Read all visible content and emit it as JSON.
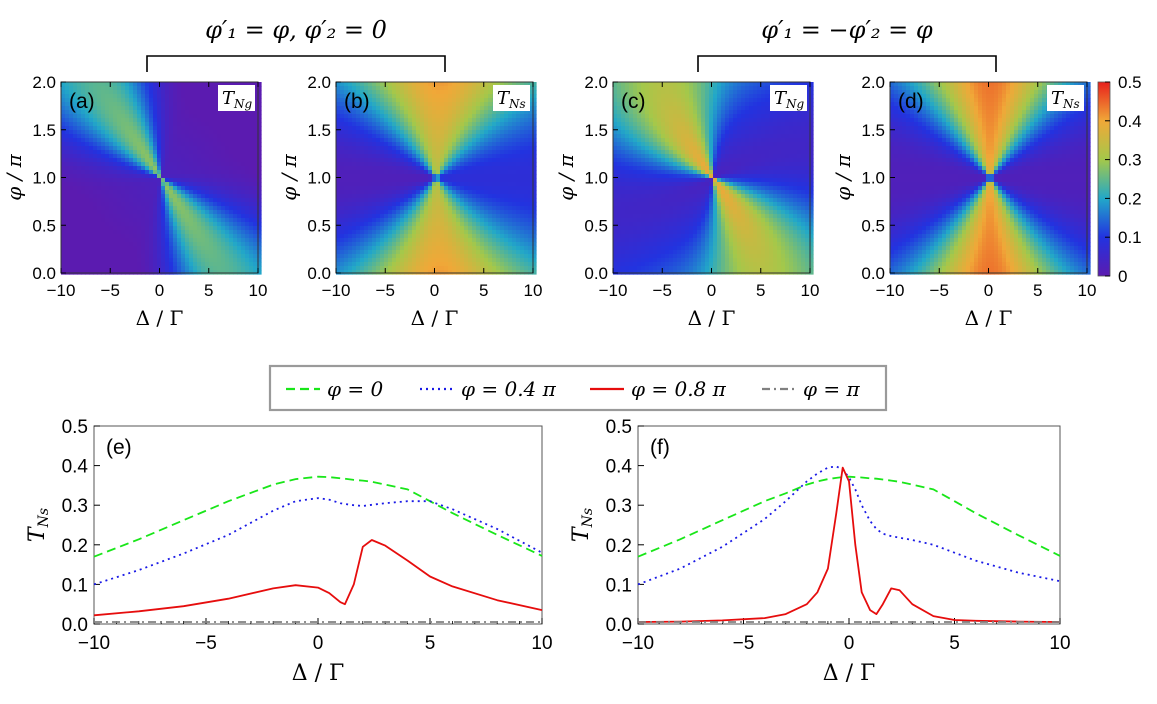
{
  "figure": {
    "group_left_label": "φ′₁ = φ, φ′₂ = 0",
    "group_right_label": "φ′₁ = −φ′₂ = φ"
  },
  "colorbar": {
    "ticks": [
      "0",
      "0.1",
      "0.2",
      "0.3",
      "0.4",
      "0.5"
    ],
    "range": [
      0,
      0.5
    ]
  },
  "legend": {
    "entries": [
      {
        "label": "φ = 0",
        "color": "#19e619",
        "style": "dashed"
      },
      {
        "label": "φ = 0.4 π",
        "color": "#1a1ae6",
        "style": "dotted"
      },
      {
        "label": "φ = 0.8 π",
        "color": "#e60d0d",
        "style": "solid"
      },
      {
        "label": "φ = π",
        "color": "#808080",
        "style": "dashdot"
      }
    ]
  },
  "chart_data": [
    {
      "type": "heatmap",
      "panel": "(a)",
      "quantity": "T_Ng",
      "xlabel": "Δ / Γ",
      "ylabel": "φ / π",
      "x_range": [
        -10,
        10
      ],
      "y_range": [
        0,
        2
      ],
      "xticks": [
        "−10",
        "−5",
        "0",
        "5",
        "10"
      ],
      "yticks": [
        "0.0",
        "0.5",
        "1.0",
        "1.5",
        "2.0"
      ]
    },
    {
      "type": "heatmap",
      "panel": "(b)",
      "quantity": "T_Ns",
      "xlabel": "Δ / Γ",
      "ylabel": "φ / π",
      "x_range": [
        -10,
        10
      ],
      "y_range": [
        0,
        2
      ],
      "xticks": [
        "−10",
        "−5",
        "0",
        "5",
        "10"
      ],
      "yticks": [
        "0.0",
        "0.5",
        "1.0",
        "1.5",
        "2.0"
      ]
    },
    {
      "type": "heatmap",
      "panel": "(c)",
      "quantity": "T_Ng",
      "xlabel": "Δ / Γ",
      "ylabel": "φ / π",
      "x_range": [
        -10,
        10
      ],
      "y_range": [
        0,
        2
      ],
      "xticks": [
        "−10",
        "−5",
        "0",
        "5",
        "10"
      ],
      "yticks": [
        "0.0",
        "0.5",
        "1.0",
        "1.5",
        "2.0"
      ]
    },
    {
      "type": "heatmap",
      "panel": "(d)",
      "quantity": "T_Ns",
      "xlabel": "Δ / Γ",
      "ylabel": "φ / π",
      "x_range": [
        -10,
        10
      ],
      "y_range": [
        0,
        2
      ],
      "xticks": [
        "−10",
        "−5",
        "0",
        "5",
        "10"
      ],
      "yticks": [
        "0.0",
        "0.5",
        "1.0",
        "1.5",
        "2.0"
      ]
    },
    {
      "type": "line",
      "panel": "(e)",
      "xlabel": "Δ / Γ",
      "ylabel": "T_Ns",
      "xlim": [
        -10,
        10
      ],
      "ylim": [
        0,
        0.5
      ],
      "xticks": [
        "−10",
        "−5",
        "0",
        "5",
        "10"
      ],
      "yticks": [
        "0.0",
        "0.1",
        "0.2",
        "0.3",
        "0.4",
        "0.5"
      ],
      "x": [
        -10,
        -8,
        -6,
        -4,
        -2,
        -1,
        0,
        0.5,
        1,
        1.2,
        1.6,
        2,
        2.4,
        3,
        4,
        5,
        6,
        8,
        10
      ],
      "series": [
        {
          "name": "φ = 0",
          "values": [
            0.17,
            0.214,
            0.262,
            0.31,
            0.352,
            0.366,
            0.372,
            0.371,
            0.368,
            0.367,
            0.364,
            0.362,
            0.359,
            0.352,
            0.34,
            0.31,
            0.28,
            0.225,
            0.172
          ]
        },
        {
          "name": "φ = 0.4 π",
          "values": [
            0.1,
            0.136,
            0.178,
            0.225,
            0.286,
            0.31,
            0.318,
            0.314,
            0.305,
            0.303,
            0.3,
            0.298,
            0.301,
            0.305,
            0.31,
            0.31,
            0.29,
            0.24,
            0.18
          ]
        },
        {
          "name": "φ = 0.8 π",
          "values": [
            0.022,
            0.032,
            0.045,
            0.064,
            0.09,
            0.098,
            0.092,
            0.078,
            0.055,
            0.05,
            0.1,
            0.195,
            0.212,
            0.198,
            0.16,
            0.12,
            0.095,
            0.06,
            0.035
          ]
        },
        {
          "name": "φ = π",
          "values": [
            0.005,
            0.005,
            0.005,
            0.005,
            0.005,
            0.005,
            0.005,
            0.005,
            0.005,
            0.005,
            0.005,
            0.005,
            0.005,
            0.005,
            0.005,
            0.005,
            0.005,
            0.005,
            0.005
          ]
        }
      ]
    },
    {
      "type": "line",
      "panel": "(f)",
      "xlabel": "Δ / Γ",
      "ylabel": "T_Ns",
      "xlim": [
        -10,
        10
      ],
      "ylim": [
        0,
        0.5
      ],
      "xticks": [
        "−10",
        "−5",
        "0",
        "5",
        "10"
      ],
      "yticks": [
        "0.0",
        "0.1",
        "0.2",
        "0.3",
        "0.4",
        "0.5"
      ],
      "x": [
        -10,
        -8,
        -6,
        -4,
        -3,
        -2,
        -1.5,
        -1,
        -0.6,
        -0.3,
        0,
        0.3,
        0.6,
        1,
        1.3,
        1.6,
        2,
        2.4,
        3,
        4,
        5,
        6,
        8,
        10
      ],
      "series": [
        {
          "name": "φ = 0",
          "values": [
            0.17,
            0.214,
            0.262,
            0.31,
            0.33,
            0.352,
            0.36,
            0.366,
            0.369,
            0.371,
            0.372,
            0.371,
            0.37,
            0.368,
            0.367,
            0.365,
            0.362,
            0.359,
            0.352,
            0.34,
            0.31,
            0.28,
            0.225,
            0.172
          ]
        },
        {
          "name": "φ = 0.4 π",
          "values": [
            0.1,
            0.14,
            0.195,
            0.265,
            0.31,
            0.36,
            0.38,
            0.395,
            0.398,
            0.39,
            0.37,
            0.34,
            0.3,
            0.26,
            0.24,
            0.228,
            0.222,
            0.218,
            0.212,
            0.2,
            0.18,
            0.16,
            0.13,
            0.108
          ]
        },
        {
          "name": "φ = 0.8 π",
          "values": [
            0.005,
            0.006,
            0.009,
            0.015,
            0.025,
            0.05,
            0.08,
            0.14,
            0.28,
            0.395,
            0.36,
            0.2,
            0.08,
            0.035,
            0.025,
            0.05,
            0.09,
            0.085,
            0.05,
            0.02,
            0.01,
            0.008,
            0.006,
            0.005
          ]
        },
        {
          "name": "φ = π",
          "values": [
            0.005,
            0.005,
            0.005,
            0.005,
            0.005,
            0.005,
            0.005,
            0.005,
            0.005,
            0.005,
            0.005,
            0.005,
            0.005,
            0.005,
            0.005,
            0.005,
            0.005,
            0.005,
            0.005,
            0.005,
            0.005,
            0.005,
            0.005,
            0.005
          ]
        }
      ]
    }
  ]
}
